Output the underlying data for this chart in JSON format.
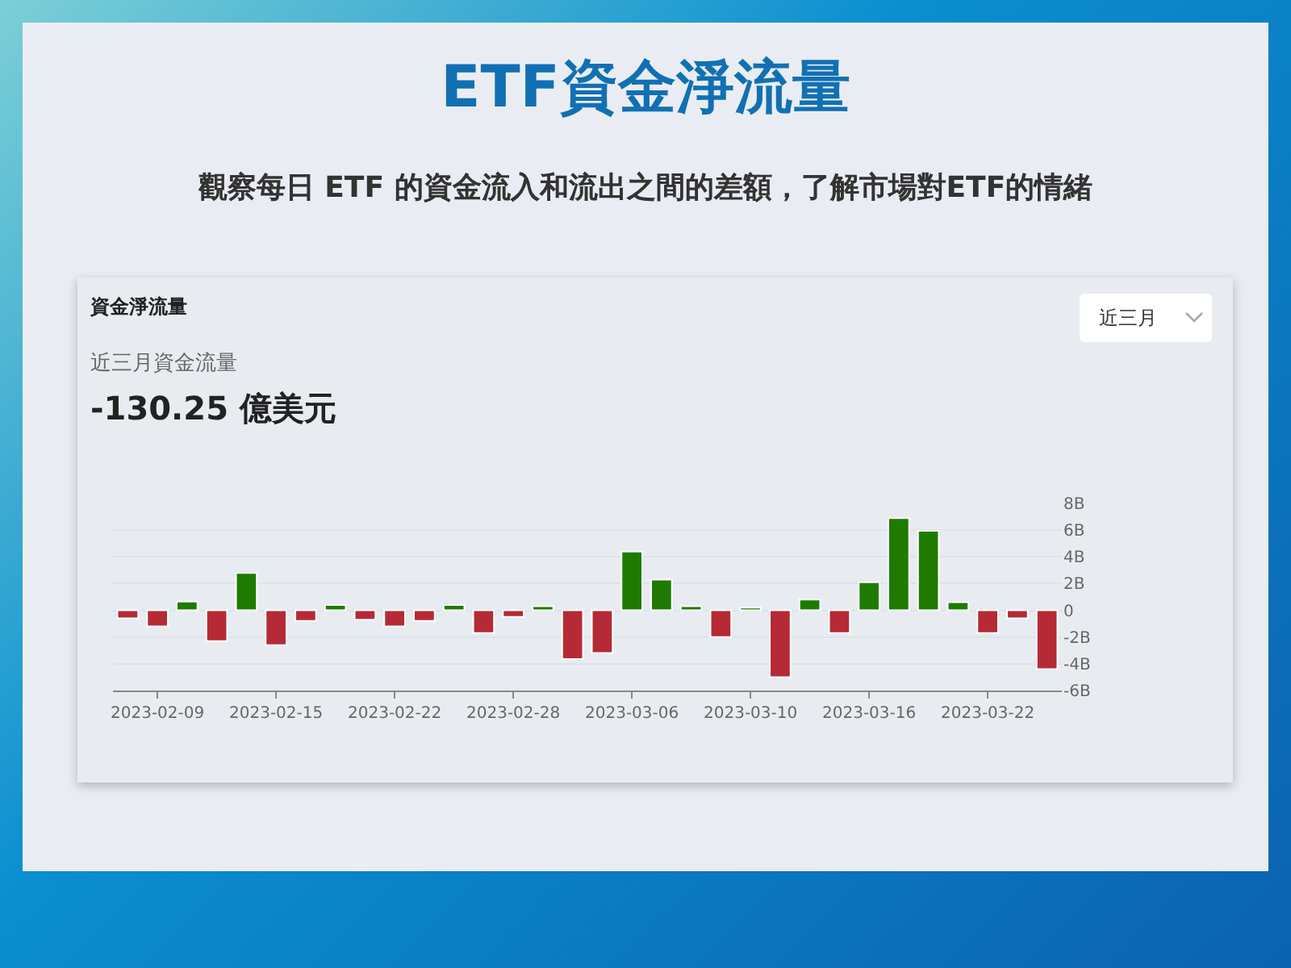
{
  "chart_data": {
    "type": "bar",
    "title": "ETF資金淨流量",
    "subtitle": "觀察每日 ETF 的資金流入和流出之間的差額，了解市場對ETF的情緒",
    "annotations": [
      "資金淨流量",
      "近三月資金流量",
      "-130.25 億美元",
      "近三月"
    ],
    "categories": [
      null,
      "2023-02-09",
      null,
      null,
      null,
      "2023-02-15",
      null,
      null,
      null,
      "2023-02-22",
      null,
      null,
      null,
      "2023-02-28",
      null,
      null,
      null,
      "2023-03-06",
      null,
      null,
      null,
      "2023-03-10",
      null,
      null,
      null,
      "2023-03-16",
      null,
      null,
      null,
      "2023-03-22",
      null,
      null
    ],
    "values": [
      -0.6,
      -1.2,
      0.65,
      -2.3,
      2.8,
      -2.6,
      -0.8,
      0.4,
      -0.7,
      -1.2,
      -0.8,
      0.4,
      -1.7,
      -0.5,
      0.3,
      -3.65,
      -3.2,
      4.4,
      2.3,
      0.3,
      -2.0,
      0.2,
      -5.0,
      0.8,
      -1.7,
      2.1,
      6.9,
      5.95,
      0.6,
      -1.7,
      -0.6,
      -4.4
    ],
    "colors": [
      "#b52a35",
      "#b52a35",
      "#1e7b00",
      "#b52a35",
      "#1e7b00",
      "#b52a35",
      "#b52a35",
      "#1e7b00",
      "#b52a35",
      "#b52a35",
      "#b52a35",
      "#1e7b00",
      "#b52a35",
      "#b52a35",
      "#1e7b00",
      "#b52a35",
      "#b52a35",
      "#1e7b00",
      "#1e7b00",
      "#1e7b00",
      "#b52a35",
      "#1e7b00",
      "#b52a35",
      "#1e7b00",
      "#b52a35",
      "#1e7b00",
      "#1e7b00",
      "#1e7b00",
      "#1e7b00",
      "#b52a35",
      "#b52a35",
      "#b52a35"
    ],
    "ylim": [
      -6,
      8
    ],
    "yticks": [
      {
        "value": 8,
        "label": "8B"
      },
      {
        "value": 6,
        "label": "6B"
      },
      {
        "value": 4,
        "label": "4B"
      },
      {
        "value": 2,
        "label": "2B"
      },
      0,
      {
        "value": -2,
        "label": "-2B"
      },
      {
        "value": -4,
        "label": "-4B"
      },
      {
        "value": -6,
        "label": "-6B"
      }
    ],
    "grid": "y",
    "legend": false
  }
}
